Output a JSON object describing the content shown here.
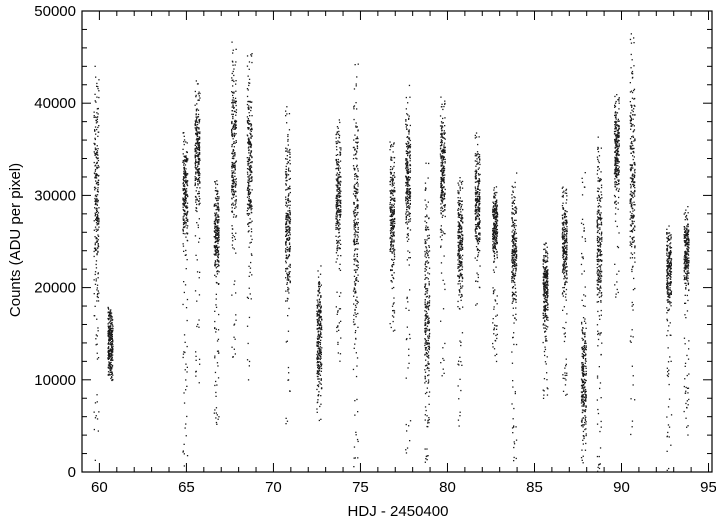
{
  "chart_data": {
    "type": "scatter",
    "title": "",
    "xlabel": "HDJ - 2450400",
    "ylabel": "Counts (ADU per pixel)",
    "xlim": [
      59,
      95.2
    ],
    "ylim": [
      0,
      50000
    ],
    "xticks": [
      60,
      65,
      70,
      75,
      80,
      85,
      90,
      95
    ],
    "yticks": [
      0,
      10000,
      20000,
      30000,
      40000,
      50000
    ],
    "xtick_labels": [
      "60",
      "65",
      "70",
      "75",
      "80",
      "85",
      "90",
      "95"
    ],
    "ytick_labels": [
      "0",
      "10000",
      "20000",
      "30000",
      "40000",
      "50000"
    ],
    "grid": false,
    "legend": "none",
    "marker_color": "#1a1a1a",
    "observation_clusters": [
      {
        "x": 59.8,
        "median": 30000,
        "min": 1000,
        "max": 46000
      },
      {
        "x": 60.6,
        "median": 14000,
        "min": 10000,
        "max": 18000
      },
      {
        "x": 64.9,
        "median": 30000,
        "min": 500,
        "max": 37000
      },
      {
        "x": 65.6,
        "median": 35000,
        "min": 9000,
        "max": 43000
      },
      {
        "x": 66.7,
        "median": 26000,
        "min": 5000,
        "max": 32000
      },
      {
        "x": 67.7,
        "median": 35000,
        "min": 12000,
        "max": 47000
      },
      {
        "x": 68.6,
        "median": 33000,
        "min": 10000,
        "max": 46000
      },
      {
        "x": 70.8,
        "median": 27000,
        "min": 5000,
        "max": 40000
      },
      {
        "x": 72.6,
        "median": 15000,
        "min": 5000,
        "max": 23000
      },
      {
        "x": 73.7,
        "median": 30000,
        "min": 12000,
        "max": 40000
      },
      {
        "x": 74.7,
        "median": 27000,
        "min": 500,
        "max": 45000
      },
      {
        "x": 76.8,
        "median": 28000,
        "min": 15000,
        "max": 36000
      },
      {
        "x": 77.7,
        "median": 32000,
        "min": 500,
        "max": 42000
      },
      {
        "x": 78.8,
        "median": 18000,
        "min": 1000,
        "max": 35000
      },
      {
        "x": 79.7,
        "median": 33000,
        "min": 10000,
        "max": 41000
      },
      {
        "x": 80.7,
        "median": 25000,
        "min": 5000,
        "max": 32000
      },
      {
        "x": 81.7,
        "median": 29000,
        "min": 18000,
        "max": 37000
      },
      {
        "x": 82.7,
        "median": 27000,
        "min": 12000,
        "max": 31000
      },
      {
        "x": 83.8,
        "median": 24000,
        "min": 500,
        "max": 33000
      },
      {
        "x": 85.6,
        "median": 20000,
        "min": 8000,
        "max": 25000
      },
      {
        "x": 86.7,
        "median": 25000,
        "min": 8000,
        "max": 31000
      },
      {
        "x": 87.8,
        "median": 10000,
        "min": 0,
        "max": 34000
      },
      {
        "x": 88.7,
        "median": 25000,
        "min": 0,
        "max": 38000
      },
      {
        "x": 89.7,
        "median": 35000,
        "min": 19000,
        "max": 41000
      },
      {
        "x": 90.6,
        "median": 32000,
        "min": 3000,
        "max": 48000
      },
      {
        "x": 92.7,
        "median": 22000,
        "min": 0,
        "max": 27000
      },
      {
        "x": 93.7,
        "median": 24000,
        "min": 4000,
        "max": 29000
      }
    ]
  }
}
